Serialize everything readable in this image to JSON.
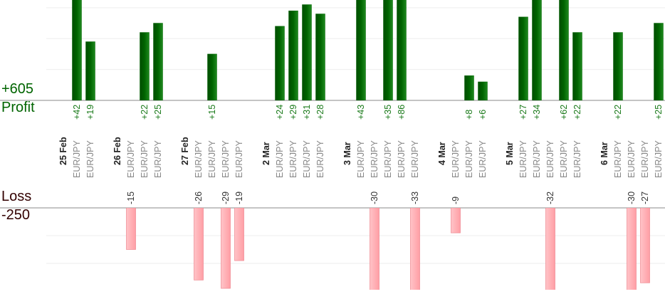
{
  "chart_data": {
    "type": "bar",
    "profit": {
      "name": "Profit",
      "total": "+605",
      "color": "#006400",
      "label_color": "#1a7a1a",
      "ylim": [
        0,
        32.5
      ],
      "yticks": [
        0,
        10,
        20,
        30
      ]
    },
    "loss": {
      "name": "Loss",
      "total": "-250",
      "color": "#ffb0b5",
      "label_color": "#333",
      "ylim": [
        -29.5,
        0
      ],
      "yticks": [
        0,
        -10,
        -20
      ]
    },
    "days": [
      {
        "date": "25 Feb",
        "trades": [
          {
            "pair": "EUR/JPY",
            "value": 42,
            "value_label": "+42"
          },
          {
            "pair": "EUR/JPY",
            "value": 19,
            "value_label": "+19"
          }
        ]
      },
      {
        "date": "26 Feb",
        "trades": [
          {
            "pair": "EUR/JPY",
            "value": -15
          },
          {
            "pair": "EUR/JPY",
            "value": 22,
            "value_label": "+22"
          },
          {
            "pair": "EUR/JPY",
            "value": 25,
            "value_label": "+25"
          }
        ]
      },
      {
        "date": "27 Feb",
        "trades": [
          {
            "pair": "EUR/JPY",
            "value": -26
          },
          {
            "pair": "EUR/JPY",
            "value": 15,
            "value_label": "+15"
          },
          {
            "pair": "EUR/JPY",
            "value": -29
          },
          {
            "pair": "EUR/JPY",
            "value": -19
          }
        ]
      },
      {
        "date": "2 Mar",
        "trades": [
          {
            "pair": "EUR/JPY",
            "value": 24,
            "value_label": "+24"
          },
          {
            "pair": "EUR/JPY",
            "value": 29,
            "value_label": "+29"
          },
          {
            "pair": "EUR/JPY",
            "value": 31,
            "value_label": "+31"
          },
          {
            "pair": "EUR/JPY",
            "value": 28,
            "value_label": "+28"
          }
        ]
      },
      {
        "date": "3 Mar",
        "trades": [
          {
            "pair": "EUR/JPY",
            "value": 43,
            "value_label": "+43"
          },
          {
            "pair": "EUR/JPY",
            "value": -30
          },
          {
            "pair": "EUR/JPY",
            "value": 35,
            "value_label": "+35"
          },
          {
            "pair": "EUR/JPY",
            "value": 86,
            "value_label": "+86"
          },
          {
            "pair": "EUR/JPY",
            "value": -33
          }
        ]
      },
      {
        "date": "4 Mar",
        "trades": [
          {
            "pair": "EUR/JPY",
            "value": -9
          },
          {
            "pair": "EUR/JPY",
            "value": 8,
            "value_label": "+8"
          },
          {
            "pair": "EUR/JPY",
            "value": 6,
            "value_label": "+6"
          }
        ]
      },
      {
        "date": "5 Mar",
        "trades": [
          {
            "pair": "EUR/JPY",
            "value": 27,
            "value_label": "+27"
          },
          {
            "pair": "EUR/JPY",
            "value": 34,
            "value_label": "+34"
          },
          {
            "pair": "EUR/JPY",
            "value": -32
          },
          {
            "pair": "EUR/JPY",
            "value": 62,
            "value_label": "+62"
          },
          {
            "pair": "EUR/JPY",
            "value": 22,
            "value_label": "+22"
          }
        ]
      },
      {
        "date": "6 Mar",
        "trades": [
          {
            "pair": "EUR/JPY",
            "value": 22,
            "value_label": "+22"
          },
          {
            "pair": "EUR/JPY",
            "value": -30
          },
          {
            "pair": "EUR/JPY",
            "value": -27
          },
          {
            "pair": "EUR/JPY",
            "value": 25,
            "value_label": "+25"
          }
        ]
      }
    ]
  }
}
